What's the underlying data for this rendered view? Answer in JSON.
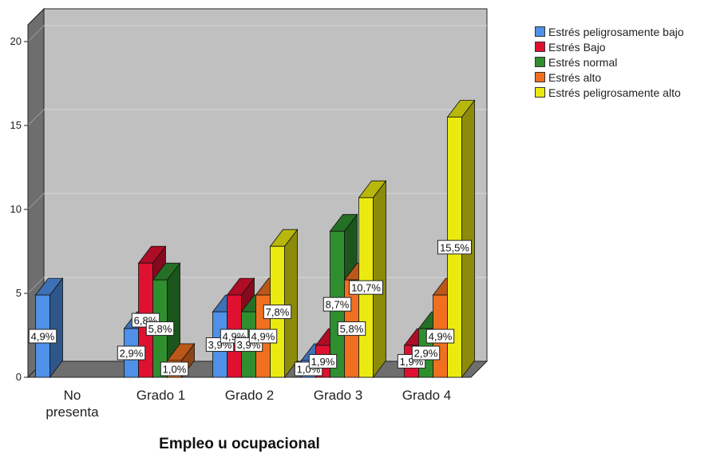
{
  "chart_data": {
    "type": "bar",
    "xlabel": "Empleo u ocupacional",
    "ylabel": "",
    "ylim": [
      0,
      21
    ],
    "yticks": [
      0,
      5,
      10,
      15,
      20
    ],
    "categories": [
      {
        "lines": [
          "No",
          "presenta"
        ]
      },
      {
        "lines": [
          "Grado 1"
        ]
      },
      {
        "lines": [
          "Grado 2"
        ]
      },
      {
        "lines": [
          "Grado 3"
        ]
      },
      {
        "lines": [
          "Grado 4"
        ]
      }
    ],
    "series": [
      {
        "name": "Estrés peligrosamente bajo",
        "color": "#4f90e8",
        "values": [
          4.9,
          2.9,
          3.9,
          1.0,
          null
        ],
        "labels": [
          "4,9%",
          "2,9%",
          "3,9%",
          "1,0%",
          null
        ]
      },
      {
        "name": "Estrés Bajo",
        "color": "#e01030",
        "values": [
          null,
          6.8,
          4.9,
          1.9,
          1.9
        ],
        "labels": [
          null,
          "6,8%",
          "4,9%",
          "1,9%",
          "1,9%"
        ]
      },
      {
        "name": "Estrés normal",
        "color": "#2f8f2f",
        "values": [
          null,
          5.8,
          3.9,
          8.7,
          2.9
        ],
        "labels": [
          null,
          "5,8%",
          "3,9%",
          "8,7%",
          "2,9%"
        ]
      },
      {
        "name": "Estrés alto",
        "color": "#f07020",
        "values": [
          null,
          1.0,
          4.9,
          5.8,
          4.9
        ],
        "labels": [
          null,
          "1,0%",
          "4,9%",
          "5,8%",
          "4,9%"
        ]
      },
      {
        "name": "Estrés peligrosamente alto",
        "color": "#eaea10",
        "values": [
          null,
          null,
          7.8,
          10.7,
          15.5
        ],
        "labels": [
          null,
          null,
          "7,8%",
          "10,7%",
          "15,5%"
        ]
      }
    ],
    "grid": true,
    "legend": "top-right",
    "three_d": true
  }
}
